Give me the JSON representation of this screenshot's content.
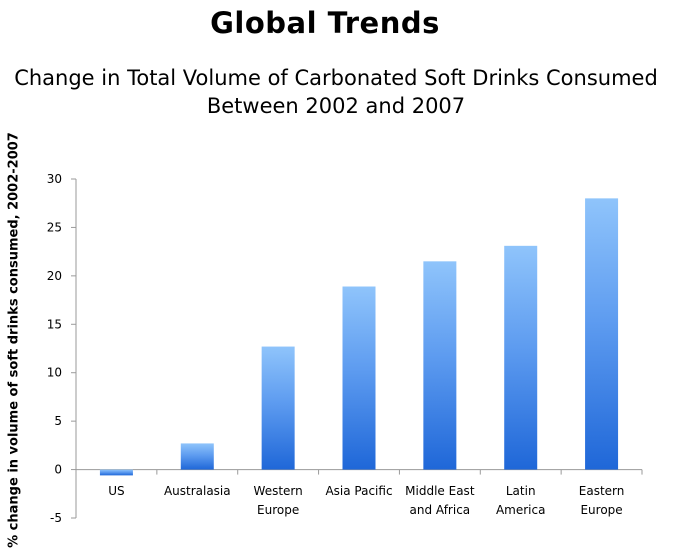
{
  "chart_data": {
    "type": "bar",
    "title": "Global Trends",
    "subtitle_lines": [
      "Change in Total Volume of Carbonated Soft Drinks Consumed",
      "Between 2002 and 2007"
    ],
    "xlabel": "",
    "ylabel": "% change  in volume of soft drinks consumed, 2002-2007",
    "ylim": [
      -5,
      30
    ],
    "yticks": [
      30,
      25,
      20,
      15,
      10,
      5,
      0,
      -5
    ],
    "grid": false,
    "legend": "none",
    "categories": [
      [
        "US"
      ],
      [
        "Australasia"
      ],
      [
        "Western",
        "Europe"
      ],
      [
        "Asia Pacific"
      ],
      [
        "Middle East",
        "and Africa"
      ],
      [
        "Latin",
        "America"
      ],
      [
        "Eastern",
        "Europe"
      ]
    ],
    "values": [
      -0.6,
      2.7,
      12.7,
      18.9,
      21.5,
      23.1,
      28.0
    ],
    "colors": {
      "bar_top": "#8fc4fb",
      "bar_bottom": "#1f67d8",
      "axis": "#9a9a9a"
    }
  }
}
